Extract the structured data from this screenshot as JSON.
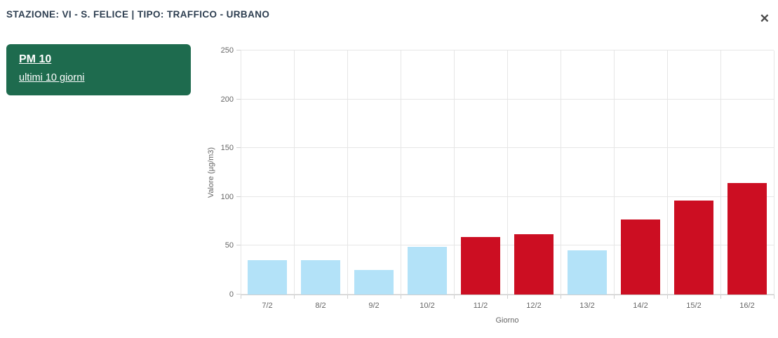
{
  "header": {
    "title": "STAZIONE: VI - S. FELICE | TIPO: TRAFFICO - URBANO",
    "close_label": "✕"
  },
  "card": {
    "title": "PM 10",
    "subtitle": "ultimi 10 giorni",
    "background_color": "#1e6b4e",
    "text_color": "#ffffff"
  },
  "chart_data": {
    "type": "bar",
    "title": "",
    "categories": [
      "7/2",
      "8/2",
      "9/2",
      "10/2",
      "11/2",
      "12/2",
      "13/2",
      "14/2",
      "15/2",
      "16/2"
    ],
    "series": [
      {
        "name": "PM 10",
        "values": [
          35,
          35,
          25,
          49,
          59,
          62,
          45,
          77,
          96,
          114
        ],
        "point_colors": [
          "#b3e2f8",
          "#b3e2f8",
          "#b3e2f8",
          "#b3e2f8",
          "#cc0e22",
          "#cc0e22",
          "#b3e2f8",
          "#cc0e22",
          "#cc0e22",
          "#cc0e22"
        ]
      }
    ],
    "xlabel": "Giorno",
    "ylabel": "Valore (µg/m3)",
    "ylim": [
      0,
      250
    ],
    "yticks": [
      0,
      50,
      100,
      150,
      200,
      250
    ],
    "grid": true,
    "legend": "none",
    "colors": {
      "bar_below_limit": "#b3e2f8",
      "bar_above_limit": "#cc0e22",
      "gridline": "#e6e6e6",
      "axis_line": "#d0d0d0",
      "tick_label": "#666666"
    }
  }
}
